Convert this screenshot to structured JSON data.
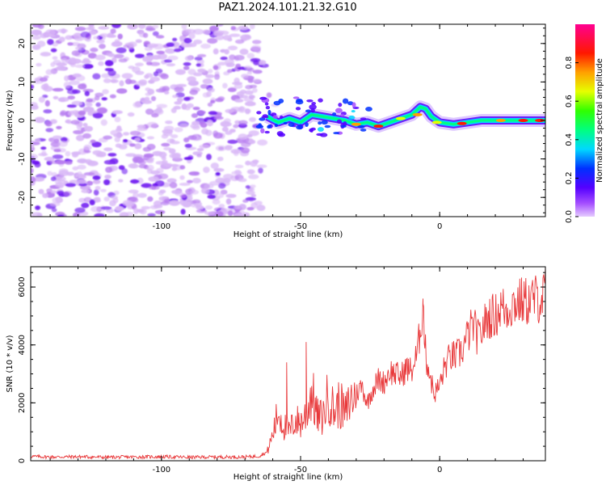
{
  "page_title": "PAZ1.2024.101.21.32.G10",
  "colors": {
    "snr_line": "#e8383a",
    "scatter_light": "#d9b8f7",
    "scatter_mid": "#b77cf0",
    "scatter_dark": "#6a10f0"
  },
  "chart_data": [
    {
      "type": "heatmap",
      "title": "",
      "xlabel": "Height of straight line (km)",
      "ylabel": "Frequency (Hz)",
      "xlim": [
        -147,
        38
      ],
      "ylim": [
        -25,
        25
      ],
      "x_ticks": [
        -100,
        -50,
        0
      ],
      "y_ticks": [
        -20,
        -10,
        0,
        10,
        20
      ],
      "colorbar": {
        "label": "Normalized spectral amplitude",
        "ticks": [
          "0.0",
          "0.2",
          "0.4",
          "0.6",
          "0.8"
        ],
        "range": [
          0,
          1
        ],
        "colormap": "gist_rainbow_r"
      },
      "ridge": {
        "x": [
          -62,
          -58,
          -54,
          -50,
          -46,
          -42,
          -38,
          -34,
          -30,
          -26,
          -22,
          -18,
          -14,
          -10,
          -7,
          -5,
          -3,
          0,
          5,
          10,
          15,
          20,
          25,
          30,
          38
        ],
        "frequency": [
          1,
          -0.5,
          0.5,
          -0.5,
          1.5,
          1,
          0.5,
          0,
          -1,
          -0.5,
          -1.5,
          -0.5,
          0.5,
          1.5,
          3.5,
          3,
          1,
          -0.5,
          -1,
          -0.5,
          0,
          0,
          0,
          0,
          0
        ]
      }
    },
    {
      "type": "line",
      "title": "",
      "xlabel": "Height of straight line (km)",
      "ylabel": "SNR (10 * v/v)",
      "xlim": [
        -147,
        38
      ],
      "ylim": [
        0,
        6700
      ],
      "x_ticks": [
        -100,
        -50,
        0
      ],
      "y_ticks": [
        0,
        2000,
        4000,
        6000
      ],
      "series": [
        {
          "x": [
            -147,
            -140,
            -130,
            -120,
            -110,
            -100,
            -90,
            -80,
            -70,
            -65,
            -62,
            -60,
            -58,
            -56,
            -54,
            -52,
            -50,
            -48,
            -46,
            -44,
            -42,
            -40,
            -38,
            -36,
            -34,
            -32,
            -30,
            -28,
            -26,
            -24,
            -22,
            -20,
            -18,
            -16,
            -14,
            -12,
            -10,
            -8,
            -6,
            -5,
            -4,
            -2,
            0,
            2,
            4,
            6,
            8,
            10,
            12,
            14,
            16,
            18,
            20,
            22,
            24,
            26,
            28,
            30,
            32,
            34,
            36,
            38
          ],
          "y": [
            150,
            130,
            140,
            120,
            130,
            140,
            120,
            130,
            130,
            160,
            300,
            900,
            1700,
            1200,
            1000,
            1400,
            1300,
            1600,
            2400,
            1500,
            1500,
            2300,
            1700,
            2000,
            1600,
            2100,
            2300,
            2600,
            2000,
            2500,
            2800,
            2700,
            3100,
            3000,
            2900,
            3200,
            3100,
            3700,
            5400,
            3600,
            3200,
            2300,
            2600,
            3300,
            3600,
            3600,
            3800,
            4300,
            4700,
            4200,
            4700,
            5000,
            5000,
            5300,
            5200,
            5400,
            5500,
            5500,
            5500,
            5600,
            5600,
            5700
          ]
        }
      ],
      "peaks": {
        "x": [
          -55,
          -48,
          -6,
          38
        ],
        "y": [
          3400,
          4100,
          5600,
          6700
        ]
      }
    }
  ]
}
